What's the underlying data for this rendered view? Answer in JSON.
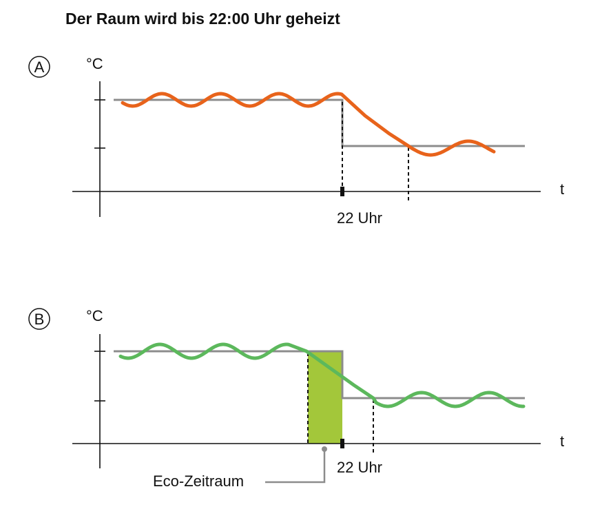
{
  "title": "Der Raum wird bis 22:00 Uhr geheizt",
  "panels": [
    {
      "label": "A",
      "y_axis_label": "°C",
      "x_axis_label": "t",
      "time_label": "22 Uhr"
    },
    {
      "label": "B",
      "y_axis_label": "°C",
      "x_axis_label": "t",
      "time_label": "22 Uhr",
      "period_label": "Eco-Zeitraum"
    }
  ]
}
